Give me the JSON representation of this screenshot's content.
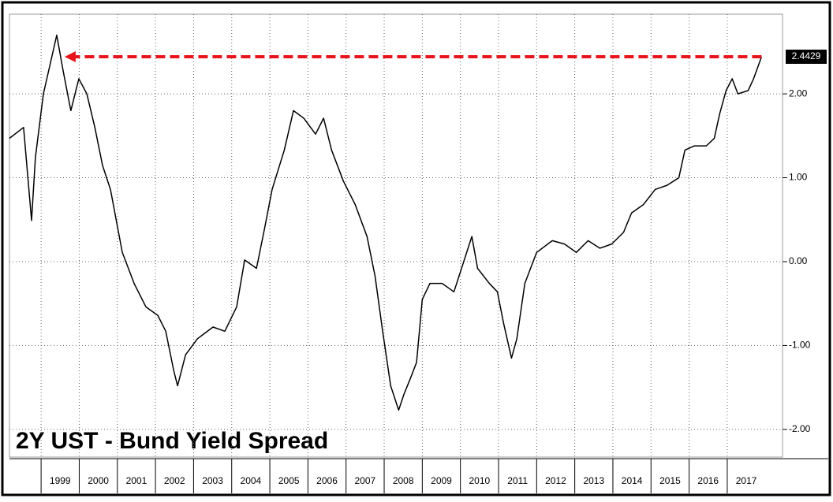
{
  "chart_data": {
    "type": "line",
    "title": "2Y UST - Bund Yield Spread",
    "x": [
      1998.17,
      1998.54,
      1998.75,
      1998.85,
      1999.06,
      1999.41,
      1999.58,
      1999.78,
      1999.99,
      2000.2,
      2000.41,
      2000.61,
      2000.82,
      2001.13,
      2001.44,
      2001.75,
      2002.06,
      2002.27,
      2002.48,
      2002.58,
      2002.79,
      2003.1,
      2003.51,
      2003.82,
      2004.13,
      2004.34,
      2004.65,
      2004.86,
      2005.06,
      2005.38,
      2005.62,
      2005.89,
      2006.2,
      2006.41,
      2006.62,
      2006.93,
      2007.24,
      2007.55,
      2007.76,
      2007.96,
      2008.17,
      2008.38,
      2008.52,
      2008.69,
      2008.85,
      2009.0,
      2009.2,
      2009.52,
      2009.83,
      2010.03,
      2010.3,
      2010.45,
      2010.76,
      2010.97,
      2011.13,
      2011.34,
      2011.48,
      2011.69,
      2012.0,
      2012.41,
      2012.73,
      2013.04,
      2013.35,
      2013.66,
      2013.97,
      2014.28,
      2014.49,
      2014.8,
      2015.11,
      2015.42,
      2015.73,
      2015.89,
      2016.14,
      2016.45,
      2016.66,
      2016.8,
      2016.97,
      2017.13,
      2017.28,
      2017.55,
      2017.69,
      2017.9
    ],
    "series": [
      {
        "name": "2Y UST - Bund Yield Spread",
        "color": "#000000",
        "values": [
          1.47,
          1.6,
          0.49,
          1.24,
          2.0,
          2.7,
          2.27,
          1.8,
          2.18,
          2.0,
          1.6,
          1.15,
          0.86,
          0.11,
          -0.26,
          -0.54,
          -0.64,
          -0.83,
          -1.3,
          -1.48,
          -1.11,
          -0.92,
          -0.78,
          -0.83,
          -0.54,
          0.02,
          -0.08,
          0.39,
          0.86,
          1.33,
          1.8,
          1.71,
          1.52,
          1.71,
          1.33,
          0.96,
          0.68,
          0.3,
          -0.17,
          -0.83,
          -1.48,
          -1.77,
          -1.58,
          -1.39,
          -1.2,
          -0.45,
          -0.26,
          -0.26,
          -0.36,
          -0.08,
          0.3,
          -0.08,
          -0.26,
          -0.36,
          -0.73,
          -1.15,
          -0.92,
          -0.26,
          0.11,
          0.25,
          0.21,
          0.11,
          0.25,
          0.16,
          0.21,
          0.35,
          0.58,
          0.68,
          0.86,
          0.91,
          1.0,
          1.33,
          1.38,
          1.38,
          1.47,
          1.76,
          2.04,
          2.18,
          2.0,
          2.04,
          2.18,
          2.4429
        ]
      }
    ],
    "xlim": [
      1998.17,
      2018.45
    ],
    "xticks": [
      1999,
      2000,
      2001,
      2002,
      2003,
      2004,
      2005,
      2006,
      2007,
      2008,
      2009,
      2010,
      2011,
      2012,
      2013,
      2014,
      2015,
      2016,
      2017
    ],
    "ylim": [
      -2.33,
      2.95
    ],
    "yticks": [
      {
        "value": 2,
        "label": "2.00"
      },
      {
        "value": 1,
        "label": "1.00"
      },
      {
        "value": 0,
        "label": "0.00"
      },
      {
        "value": -1,
        "label": "-1.00"
      },
      {
        "value": -2,
        "label": "-2.00"
      }
    ],
    "grid": true,
    "annotations": [
      {
        "text": "2.4429",
        "value": 2.4429,
        "color": "#e8141b"
      }
    ]
  }
}
